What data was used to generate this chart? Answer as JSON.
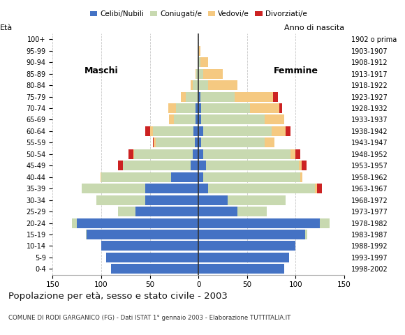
{
  "age_groups": [
    "0-4",
    "5-9",
    "10-14",
    "15-19",
    "20-24",
    "25-29",
    "30-34",
    "35-39",
    "40-44",
    "45-49",
    "50-54",
    "55-59",
    "60-64",
    "65-69",
    "70-74",
    "75-79",
    "80-84",
    "85-89",
    "90-94",
    "95-99",
    "100+"
  ],
  "birth_years": [
    "1998-2002",
    "1993-1997",
    "1988-1992",
    "1983-1987",
    "1978-1982",
    "1973-1977",
    "1968-1972",
    "1963-1967",
    "1958-1962",
    "1953-1957",
    "1948-1952",
    "1943-1947",
    "1938-1942",
    "1933-1937",
    "1928-1932",
    "1923-1927",
    "1918-1922",
    "1913-1917",
    "1908-1912",
    "1903-1907",
    "1902 o prima"
  ],
  "males_celibe": [
    90,
    95,
    100,
    115,
    125,
    65,
    55,
    55,
    28,
    8,
    6,
    4,
    5,
    3,
    3,
    1,
    0,
    0,
    0,
    0,
    0
  ],
  "males_coniugato": [
    0,
    0,
    0,
    1,
    5,
    18,
    50,
    65,
    72,
    70,
    60,
    40,
    42,
    22,
    20,
    12,
    6,
    2,
    1,
    0,
    0
  ],
  "males_vedovo": [
    0,
    0,
    0,
    0,
    0,
    0,
    0,
    0,
    1,
    0,
    1,
    2,
    3,
    5,
    8,
    5,
    2,
    1,
    0,
    0,
    0
  ],
  "males_divorziato": [
    0,
    0,
    0,
    0,
    0,
    0,
    0,
    0,
    0,
    5,
    5,
    1,
    5,
    0,
    0,
    0,
    0,
    0,
    0,
    0,
    0
  ],
  "females_nubile": [
    88,
    93,
    100,
    110,
    125,
    40,
    30,
    10,
    5,
    8,
    5,
    3,
    5,
    3,
    3,
    2,
    0,
    0,
    0,
    0,
    0
  ],
  "females_coniugata": [
    0,
    0,
    0,
    2,
    10,
    30,
    60,
    110,
    100,
    95,
    90,
    65,
    70,
    65,
    50,
    35,
    10,
    5,
    2,
    0,
    0
  ],
  "females_vedova": [
    0,
    0,
    0,
    0,
    0,
    0,
    0,
    2,
    2,
    3,
    5,
    10,
    15,
    20,
    30,
    40,
    30,
    20,
    8,
    2,
    0
  ],
  "females_divorziata": [
    0,
    0,
    0,
    0,
    0,
    0,
    0,
    5,
    0,
    5,
    5,
    0,
    5,
    0,
    3,
    5,
    0,
    0,
    0,
    0,
    0
  ],
  "colors": {
    "celibe_nubile": "#4472C4",
    "coniugato_coniugata": "#c8d9b0",
    "vedovo_vedova": "#f5c981",
    "divorziato_divorziata": "#cc2222"
  },
  "xlim": [
    -150,
    150
  ],
  "xticks": [
    -150,
    -100,
    -50,
    0,
    50,
    100,
    150
  ],
  "xticklabels": [
    "150",
    "100",
    "50",
    "0",
    "50",
    "100",
    "150"
  ],
  "title": "Popolazione per età, sesso e stato civile - 2003",
  "subtitle": "COMUNE DI RODI GARGANICO (FG) - Dati ISTAT 1° gennaio 2003 - Elaborazione TUTTITALIA.IT",
  "ylabel_left": "Età",
  "ylabel_right": "Anno di nascita",
  "label_maschi": "Maschi",
  "label_femmine": "Femmine",
  "legend_labels": [
    "Celibi/Nubili",
    "Coniugati/e",
    "Vedovi/e",
    "Divorziati/e"
  ],
  "bg_color": "#ffffff",
  "bar_height": 0.85,
  "grid_color": "#bbbbbb"
}
